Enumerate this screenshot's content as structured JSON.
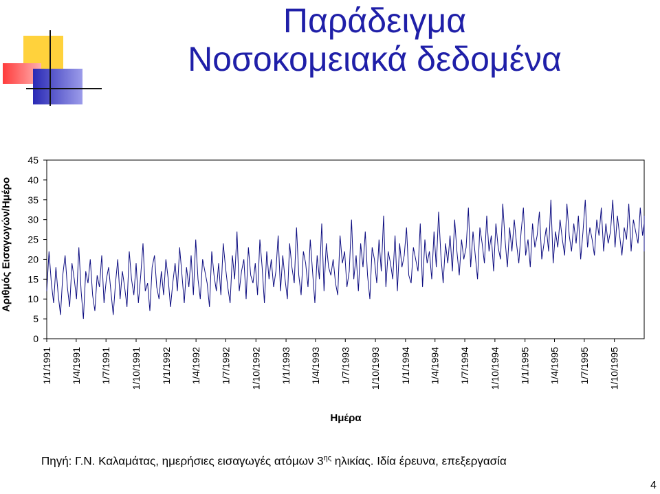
{
  "slide": {
    "title_line1": "Παράδειγμα",
    "title_line2": "Νοσοκομειακά δεδομένα",
    "source_prefix": "Πηγή: Γ.Ν. Καλαμάτας, ημερήσιες εισαγωγές ατόμων 3",
    "source_sup": "ης",
    "source_suffix": " ηλικίας. Ιδία έρευνα, επεξεργασία",
    "page_number": "4",
    "colors": {
      "title": "#1f1fa8",
      "series": "#0c0c80",
      "deco_yellow": "#ffd23c",
      "deco_blue": "#2a2ab5",
      "deco_red": "#ff5050"
    }
  },
  "chart_data": {
    "type": "line",
    "xlabel": "Ημέρα",
    "ylabel": "Αριθμός Εισαγωγών/Ημέρο",
    "ylim": [
      0,
      45
    ],
    "yticks": [
      0,
      5,
      10,
      15,
      20,
      25,
      30,
      35,
      40,
      45
    ],
    "x_start": "1/1/1991",
    "x_end": "31/12/1995",
    "xticks": [
      "1/1/1991",
      "1/4/1991",
      "1/7/1991",
      "1/10/1991",
      "1/1/1992",
      "1/4/1992",
      "1/7/1992",
      "1/10/1992",
      "1/1/1993",
      "1/4/1993",
      "1/7/1993",
      "1/10/1993",
      "1/1/1994",
      "1/4/1994",
      "1/7/1994",
      "1/10/1994",
      "1/1/1995",
      "1/4/1995",
      "1/7/1995",
      "1/10/1995"
    ],
    "grid": false,
    "legend": "none",
    "series": [
      {
        "values_note_resolution": "every 7th day (weekly sample of daily series)",
        "x_step_days": 7,
        "values": [
          12,
          22,
          14,
          9,
          18,
          11,
          6,
          16,
          21,
          13,
          8,
          19,
          15,
          10,
          23,
          12,
          5,
          17,
          14,
          20,
          11,
          7,
          16,
          13,
          21,
          9,
          15,
          18,
          12,
          6,
          14,
          20,
          10,
          17,
          13,
          8,
          22,
          15,
          11,
          19,
          9,
          16,
          24,
          12,
          14,
          7,
          18,
          21,
          13,
          10,
          17,
          11,
          20,
          15,
          8,
          14,
          19,
          12,
          23,
          16,
          9,
          18,
          13,
          21,
          11,
          25,
          15,
          10,
          20,
          17,
          14,
          8,
          22,
          16,
          12,
          19,
          11,
          24,
          18,
          13,
          9,
          21,
          15,
          27,
          12,
          17,
          20,
          10,
          23,
          16,
          14,
          19,
          11,
          25,
          18,
          9,
          22,
          15,
          20,
          13,
          17,
          26,
          12,
          21,
          15,
          10,
          24,
          18,
          14,
          28,
          16,
          11,
          22,
          19,
          13,
          25,
          17,
          9,
          21,
          15,
          29,
          12,
          24,
          18,
          16,
          20,
          14,
          11,
          26,
          19,
          22,
          13,
          17,
          30,
          15,
          21,
          12,
          24,
          18,
          27,
          16,
          10,
          23,
          20,
          14,
          25,
          17,
          31,
          13,
          22,
          19,
          15,
          26,
          12,
          24,
          18,
          21,
          28,
          16,
          14,
          23,
          20,
          17,
          29,
          13,
          25,
          19,
          22,
          15,
          27,
          18,
          32,
          21,
          14,
          24,
          19,
          26,
          17,
          30,
          22,
          16,
          25,
          20,
          23,
          33,
          18,
          27,
          21,
          15,
          28,
          24,
          19,
          31,
          22,
          26,
          17,
          29,
          23,
          20,
          34,
          25,
          18,
          28,
          22,
          30,
          24,
          19,
          27,
          33,
          21,
          25,
          18,
          29,
          23,
          26,
          32,
          20,
          24,
          28,
          22,
          35,
          19,
          27,
          23,
          30,
          25,
          21,
          34,
          26,
          22,
          29,
          24,
          31,
          20,
          27,
          35,
          23,
          28,
          25,
          21,
          30,
          26,
          33,
          22,
          29,
          24,
          27,
          35,
          23,
          31,
          26,
          21,
          28,
          25,
          34,
          22,
          30,
          27,
          24,
          33,
          26,
          29,
          23,
          31,
          25,
          28,
          22
        ]
      }
    ]
  }
}
